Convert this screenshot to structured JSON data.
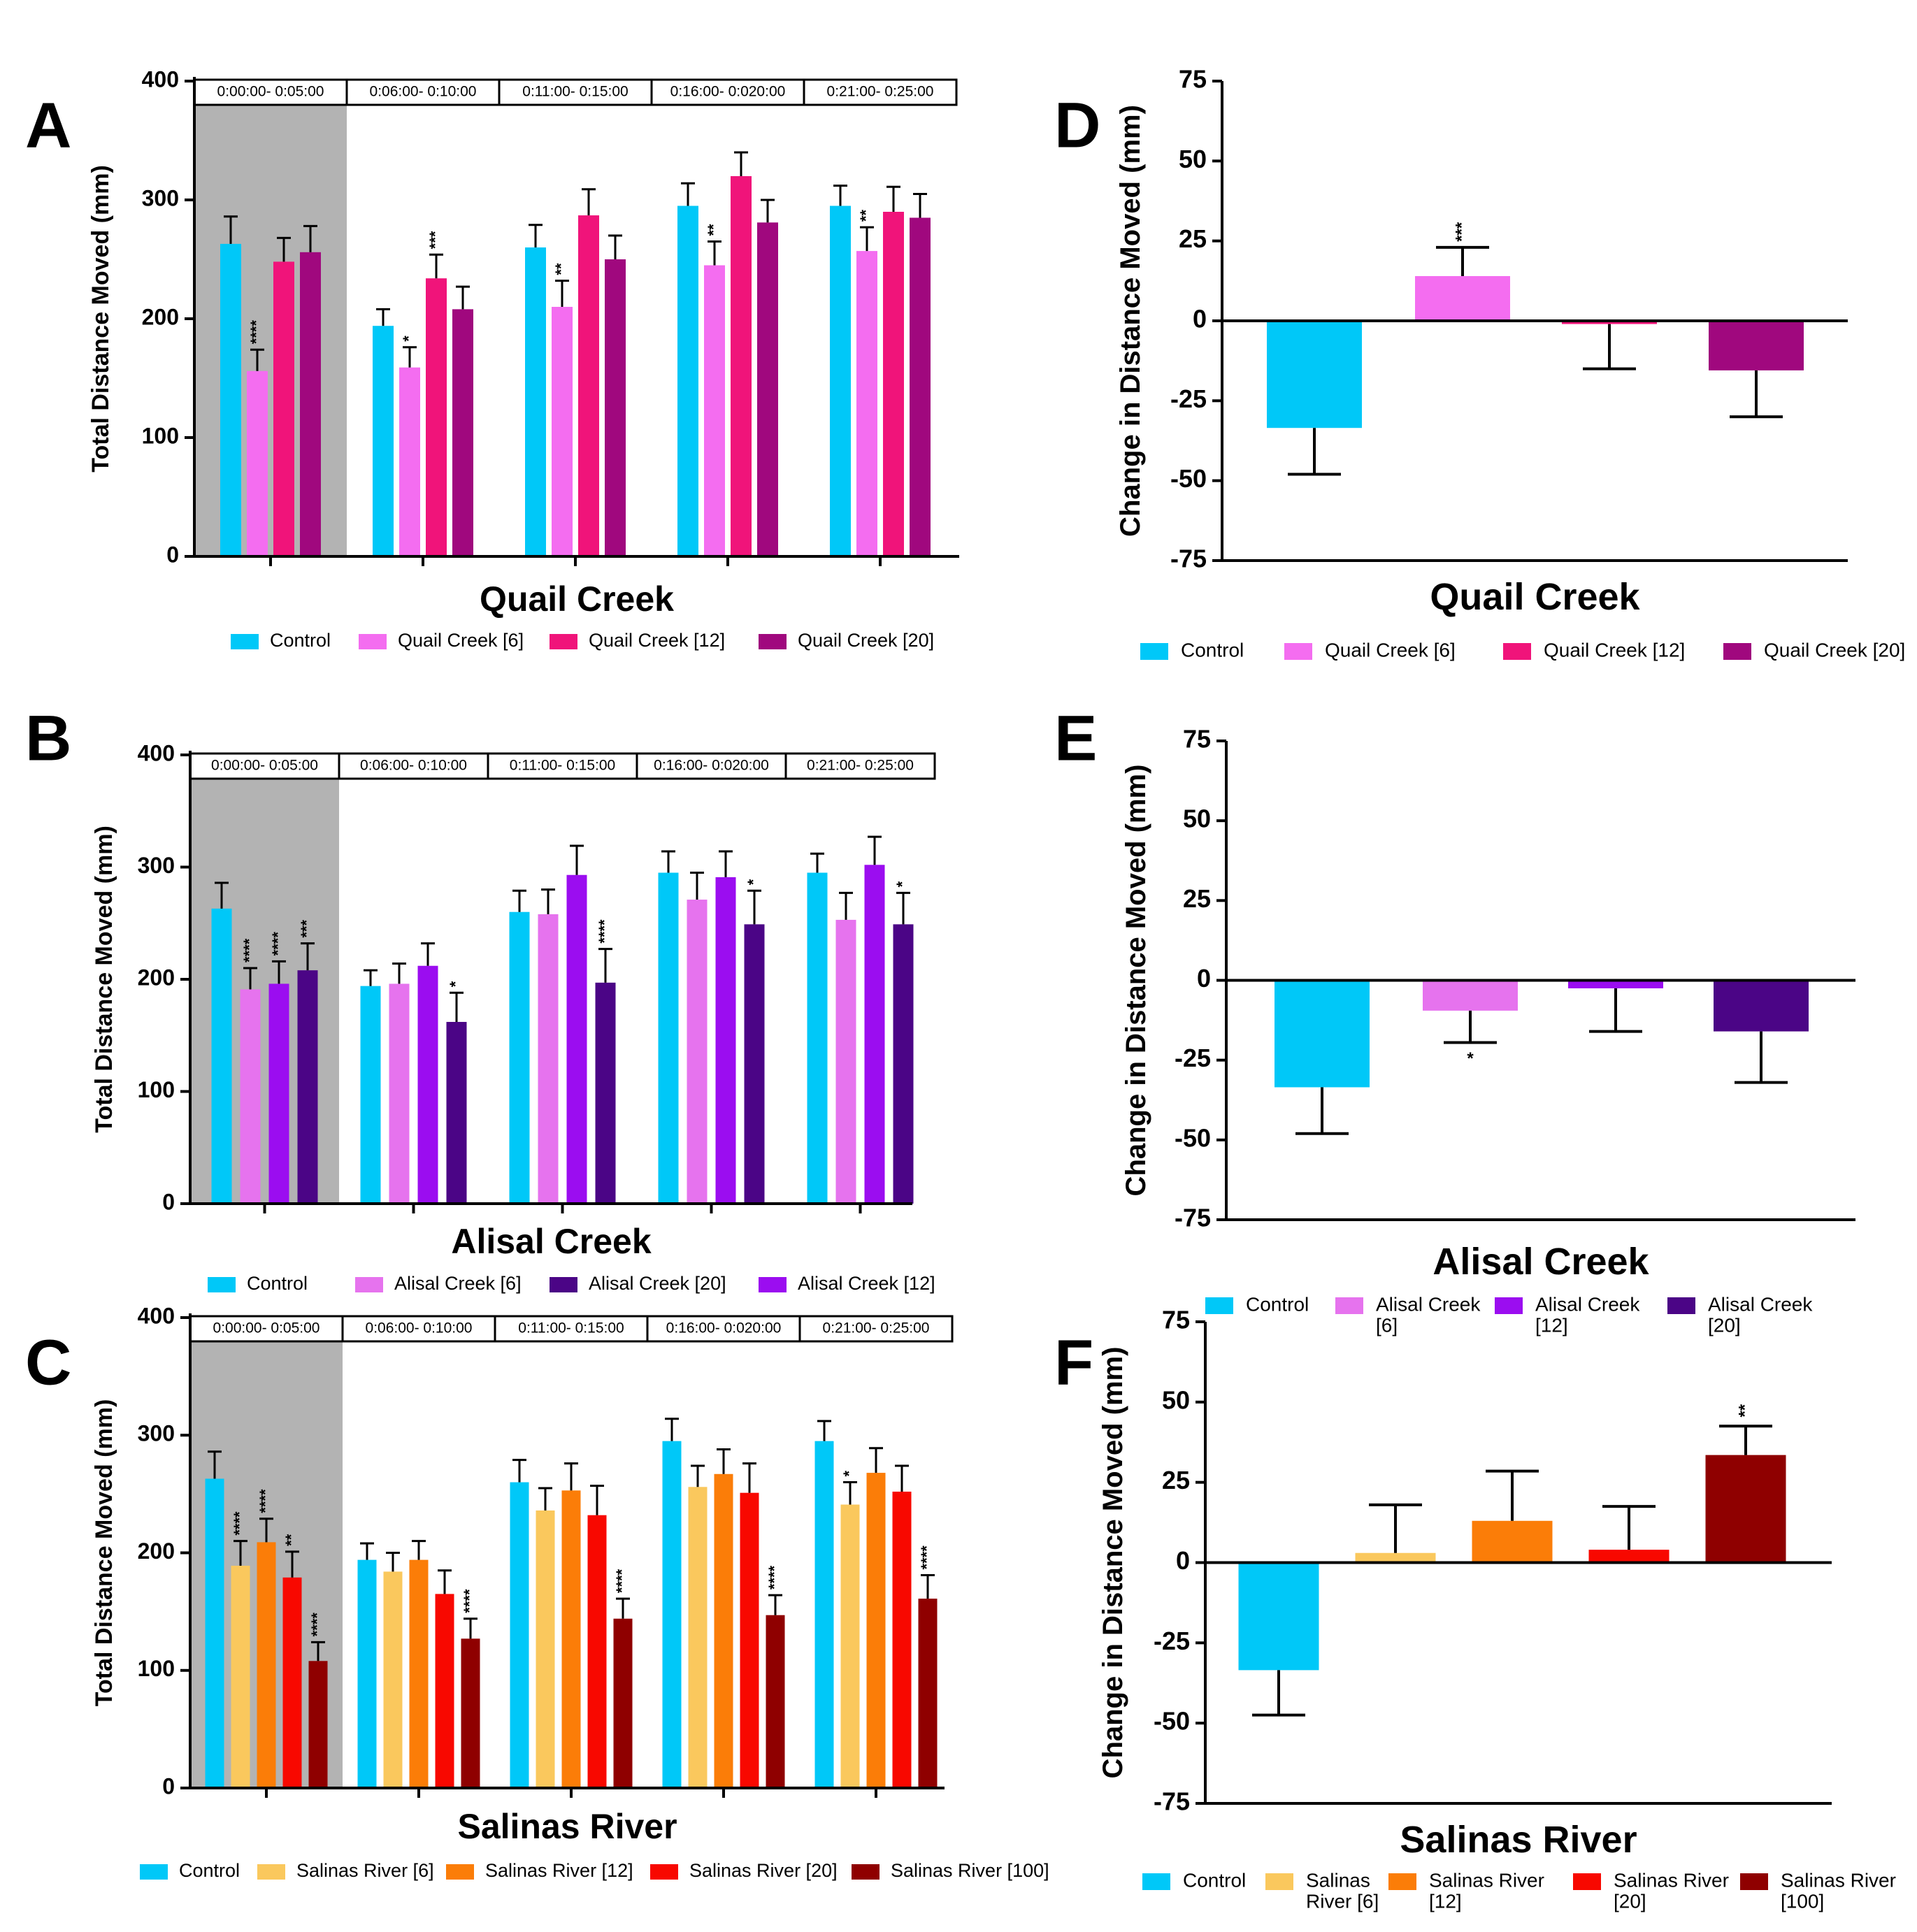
{
  "colors": {
    "control": "#00c8f8",
    "quail_6": "#f46df0",
    "quail_12": "#f0147a",
    "quail_20": "#a0087e",
    "alisal_6": "#e673ee",
    "alisal_12": "#9b0df0",
    "alisal_20": "#4b0586",
    "salinas_6": "#fac85d",
    "salinas_12": "#fb7d08",
    "salinas_20": "#f80800",
    "salinas_100": "#8f0000",
    "shade": "#b3b3b3"
  },
  "chart_data": [
    {
      "panel": "A",
      "type": "bar",
      "title": "Quail Creek",
      "xlabel": "Quail Creek",
      "ylabel": "Total Distance Moved (mm)",
      "ylim": [
        0,
        400
      ],
      "yticks": [
        "0",
        "100",
        "200",
        "300",
        "400"
      ],
      "categories": [
        "0:00:00- 0:05:00",
        "0:06:00- 0:10:00",
        "0:11:00- 0:15:00",
        "0:16:00- 0:020:00",
        "0:21:00- 0:25:00"
      ],
      "series": [
        {
          "name": "Control",
          "color_key": "control",
          "values": [
            263,
            194,
            260,
            295,
            295
          ],
          "errors": [
            23,
            14,
            19,
            19,
            17
          ],
          "sig": [
            "",
            "",
            "",
            "",
            ""
          ]
        },
        {
          "name": "Quail Creek [6]",
          "color_key": "quail_6",
          "values": [
            156,
            159,
            210,
            245,
            257
          ],
          "errors": [
            18,
            17,
            22,
            20,
            20
          ],
          "sig": [
            "****",
            "*",
            "**",
            "**",
            "**"
          ]
        },
        {
          "name": "Quail Creek [12]",
          "color_key": "quail_12",
          "values": [
            248,
            234,
            287,
            320,
            290
          ],
          "errors": [
            20,
            20,
            22,
            20,
            21
          ],
          "sig": [
            "",
            "***",
            "",
            "",
            ""
          ]
        },
        {
          "name": "Quail Creek [20]",
          "color_key": "quail_20",
          "values": [
            256,
            208,
            250,
            281,
            285
          ],
          "errors": [
            22,
            19,
            20,
            19,
            20
          ],
          "sig": [
            "",
            "",
            "",
            "",
            ""
          ]
        }
      ],
      "legend": [
        "Control",
        "Quail Creek [6]",
        "Quail Creek [12]",
        "Quail Creek [20]"
      ]
    },
    {
      "panel": "B",
      "type": "bar",
      "title": "Alisal Creek",
      "xlabel": "Alisal Creek",
      "ylabel": "Total Distance Moved (mm)",
      "ylim": [
        0,
        400
      ],
      "yticks": [
        "0",
        "100",
        "200",
        "300",
        "400"
      ],
      "categories": [
        "0:00:00- 0:05:00",
        "0:06:00- 0:10:00",
        "0:11:00- 0:15:00",
        "0:16:00- 0:020:00",
        "0:21:00- 0:25:00"
      ],
      "series": [
        {
          "name": "Control",
          "color_key": "control",
          "values": [
            263,
            194,
            260,
            295,
            295
          ],
          "errors": [
            23,
            14,
            19,
            19,
            17
          ],
          "sig": [
            "",
            "",
            "",
            "",
            ""
          ]
        },
        {
          "name": "Alisal Creek [6]",
          "color_key": "alisal_6",
          "values": [
            191,
            196,
            258,
            271,
            253
          ],
          "errors": [
            19,
            18,
            22,
            24,
            24
          ],
          "sig": [
            "****",
            "",
            "",
            "",
            ""
          ]
        },
        {
          "name": "Alisal Creek [12]",
          "color_key": "alisal_12",
          "values": [
            196,
            212,
            293,
            291,
            302
          ],
          "errors": [
            20,
            20,
            26,
            23,
            25
          ],
          "sig": [
            "****",
            "",
            "",
            "",
            ""
          ]
        },
        {
          "name": "Alisal Creek [20]",
          "color_key": "alisal_20",
          "values": [
            208,
            162,
            197,
            249,
            249
          ],
          "errors": [
            24,
            26,
            30,
            30,
            28
          ],
          "sig": [
            "***",
            "*",
            "****",
            "*",
            "*"
          ]
        }
      ],
      "legend": [
        "Control",
        "Alisal Creek [6]",
        "Alisal Creek [20]",
        "Alisal Creek [12]"
      ]
    },
    {
      "panel": "C",
      "type": "bar",
      "title": "Salinas River",
      "xlabel": "Salinas River",
      "ylabel": "Total Distance Moved (mm)",
      "ylim": [
        0,
        400
      ],
      "yticks": [
        "0",
        "100",
        "200",
        "300",
        "400"
      ],
      "categories": [
        "0:00:00- 0:05:00",
        "0:06:00- 0:10:00",
        "0:11:00- 0:15:00",
        "0:16:00- 0:020:00",
        "0:21:00- 0:25:00"
      ],
      "series": [
        {
          "name": "Control",
          "color_key": "control",
          "values": [
            263,
            194,
            260,
            295,
            295
          ],
          "errors": [
            23,
            14,
            19,
            19,
            17
          ],
          "sig": [
            "",
            "",
            "",
            "",
            ""
          ]
        },
        {
          "name": "Salinas River [6]",
          "color_key": "salinas_6",
          "values": [
            189,
            184,
            236,
            256,
            241
          ],
          "errors": [
            21,
            16,
            19,
            18,
            19
          ],
          "sig": [
            "****",
            "",
            "",
            "",
            "*"
          ]
        },
        {
          "name": "Salinas River [12]",
          "color_key": "salinas_12",
          "values": [
            209,
            194,
            253,
            267,
            268
          ],
          "errors": [
            20,
            16,
            23,
            21,
            21
          ],
          "sig": [
            "****",
            "",
            "",
            "",
            ""
          ]
        },
        {
          "name": "Salinas River [20]",
          "color_key": "salinas_20",
          "values": [
            179,
            165,
            232,
            251,
            252
          ],
          "errors": [
            22,
            20,
            25,
            25,
            22
          ],
          "sig": [
            "**",
            "",
            "",
            "",
            ""
          ]
        },
        {
          "name": "Salinas River [100]",
          "color_key": "salinas_100",
          "values": [
            108,
            127,
            144,
            147,
            161
          ],
          "errors": [
            16,
            17,
            17,
            17,
            20
          ],
          "sig": [
            "****",
            "****",
            "****",
            "****",
            "****"
          ]
        }
      ],
      "legend": [
        "Control",
        "Salinas River [6]",
        "Salinas River [12]",
        "Salinas River [20]",
        "Salinas River [100]"
      ]
    },
    {
      "panel": "D",
      "type": "bar",
      "title": "Quail Creek",
      "xlabel": "Quail Creek",
      "ylabel": "Change in Distance Moved (mm)",
      "ylim": [
        -75,
        75
      ],
      "yticks": [
        "75",
        "50",
        "25",
        "0",
        "-25",
        "-50",
        "-75"
      ],
      "categories": [
        "Control",
        "Quail Creek [6]",
        "Quail Creek [12]",
        "Quail Creek [20]"
      ],
      "series": [
        {
          "name": "Change",
          "color_keys": [
            "control",
            "quail_6",
            "quail_12",
            "quail_20"
          ],
          "values": [
            -33.5,
            14,
            -1,
            -15.5
          ],
          "errors": [
            14.5,
            9,
            14,
            14.5
          ],
          "sig": [
            "",
            "***",
            "",
            ""
          ]
        }
      ],
      "legend": [
        "Control",
        "Quail Creek [6]",
        "Quail Creek [12]",
        "Quail Creek [20]"
      ]
    },
    {
      "panel": "E",
      "type": "bar",
      "title": "Alisal Creek",
      "xlabel": "Alisal Creek",
      "ylabel": "Change in Distance Moved (mm)",
      "ylim": [
        -75,
        75
      ],
      "yticks": [
        "75",
        "50",
        "25",
        "0",
        "-25",
        "-50",
        "-75"
      ],
      "categories": [
        "Control",
        "Alisal Creek [6]",
        "Alisal Creek [12]",
        "Alisal Creek [20]"
      ],
      "series": [
        {
          "name": "Change",
          "color_keys": [
            "control",
            "alisal_6",
            "alisal_12",
            "alisal_20"
          ],
          "values": [
            -33.5,
            -9.5,
            -2.5,
            -16
          ],
          "errors": [
            14.5,
            10,
            13.5,
            16
          ],
          "sig": [
            "",
            "*",
            "",
            ""
          ]
        }
      ],
      "legend": [
        [
          "Control"
        ],
        [
          "Alisal Creek",
          "[6]"
        ],
        [
          "Alisal Creek",
          "[12]"
        ],
        [
          "Alisal Creek",
          "[20]"
        ]
      ]
    },
    {
      "panel": "F",
      "type": "bar",
      "title": "Salinas River",
      "xlabel": "Salinas River",
      "ylabel": "Change in Distance Moved (mm)",
      "ylim": [
        -75,
        75
      ],
      "yticks": [
        "75",
        "50",
        "25",
        "0",
        "-25",
        "-50",
        "-75"
      ],
      "categories": [
        "Control",
        "Salinas River [6]",
        "Salinas River [12]",
        "Salinas River [20]",
        "Salinas River [100]"
      ],
      "series": [
        {
          "name": "Change",
          "color_keys": [
            "control",
            "salinas_6",
            "salinas_12",
            "salinas_20",
            "salinas_100"
          ],
          "values": [
            -33.5,
            3,
            13,
            4,
            33.5
          ],
          "errors": [
            14,
            15,
            15.5,
            13.5,
            9
          ],
          "sig": [
            "",
            "",
            "",
            "",
            "**"
          ]
        }
      ],
      "legend": [
        [
          "Control"
        ],
        [
          "Salinas",
          "River [6]"
        ],
        [
          "Salinas River",
          "[12]"
        ],
        [
          "Salinas River",
          "[20]"
        ],
        [
          "Salinas River",
          "[100]"
        ]
      ]
    }
  ]
}
